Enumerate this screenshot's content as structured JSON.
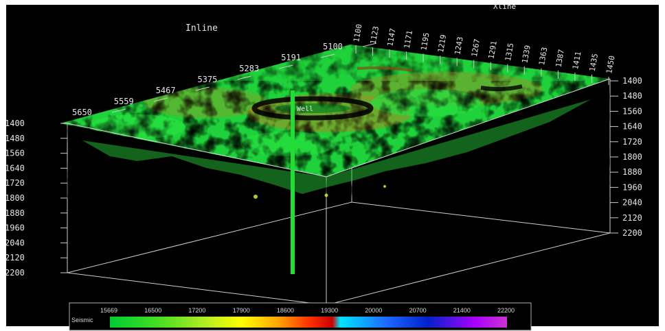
{
  "axes": {
    "inline": {
      "title": "Inline",
      "ticks": [
        "5100",
        "5191",
        "5283",
        "5375",
        "5467",
        "5559",
        "5650"
      ]
    },
    "xline": {
      "title": "Xline",
      "ticks": [
        "1100",
        "1123",
        "1147",
        "1171",
        "1195",
        "1219",
        "1243",
        "1267",
        "1291",
        "1315",
        "1339",
        "1363",
        "1387",
        "1411",
        "1435",
        "1450"
      ]
    },
    "depth": {
      "ticks": [
        "1400",
        "1480",
        "1560",
        "1640",
        "1720",
        "1800",
        "1880",
        "1960",
        "2040",
        "2120",
        "2200"
      ]
    }
  },
  "well": {
    "label": "Well"
  },
  "legend": {
    "attribute": "Seismic",
    "ticks": [
      "15669",
      "16500",
      "17200",
      "17900",
      "18600",
      "19300",
      "20000",
      "20700",
      "21400",
      "22200"
    ],
    "colors": [
      "#00cc33",
      "#44dd22",
      "#bbee22",
      "#ffff00",
      "#ffaa00",
      "#ff3300",
      "#cc0000",
      "#00e5ff",
      "#1e66ff",
      "#0022cc",
      "#aa00ff",
      "#cc33cc"
    ]
  },
  "colors": {
    "background": "#000000",
    "frame_border": "#ffffff",
    "box_lines": "#d0d0d0",
    "surface_base": "#1fd13a",
    "surface_yellow": "#d8e820",
    "surface_orange": "#c9791f",
    "well": "#22dd33"
  }
}
